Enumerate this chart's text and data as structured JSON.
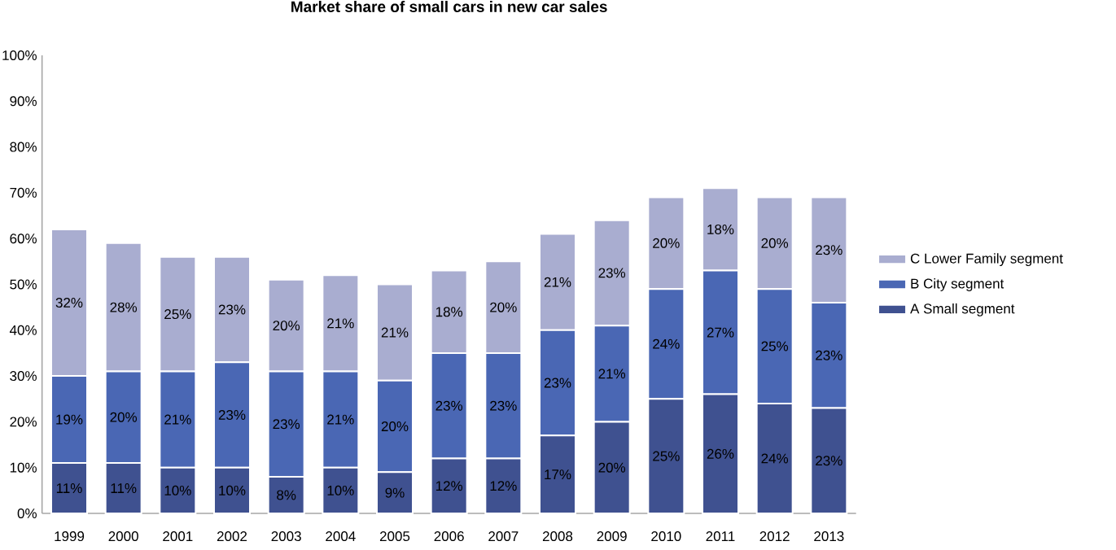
{
  "chart_data": {
    "type": "bar",
    "title": "Market share of small cars in new car sales",
    "categories": [
      "1999",
      "2000",
      "2001",
      "2002",
      "2003",
      "2004",
      "2005",
      "2006",
      "2007",
      "2008",
      "2009",
      "2010",
      "2011",
      "2012",
      "2013"
    ],
    "stacked": true,
    "series": [
      {
        "name": "A Small segment",
        "color": "#3f5190",
        "values": [
          11,
          11,
          10,
          10,
          8,
          10,
          9,
          12,
          12,
          17,
          20,
          25,
          26,
          24,
          23
        ],
        "value_labels": [
          "11%",
          "11%",
          "10%",
          "10%",
          "8%",
          "10%",
          "9%",
          "12%",
          "12%",
          "17%",
          "20%",
          "25%",
          "26%",
          "24%",
          "23%"
        ]
      },
      {
        "name": "B City segment",
        "color": "#4a67b4",
        "values": [
          19,
          20,
          21,
          23,
          23,
          21,
          20,
          23,
          23,
          23,
          21,
          24,
          27,
          25,
          23
        ],
        "value_labels": [
          "19%",
          "20%",
          "21%",
          "23%",
          "23%",
          "21%",
          "20%",
          "23%",
          "23%",
          "23%",
          "21%",
          "24%",
          "27%",
          "25%",
          "23%"
        ]
      },
      {
        "name": "C Lower Family segment",
        "color": "#a9add0",
        "values": [
          32,
          28,
          25,
          23,
          20,
          21,
          21,
          18,
          20,
          21,
          23,
          20,
          18,
          20,
          23
        ],
        "value_labels": [
          "32%",
          "28%",
          "25%",
          "23%",
          "20%",
          "21%",
          "21%",
          "18%",
          "20%",
          "21%",
          "23%",
          "20%",
          "18%",
          "20%",
          "23%"
        ]
      }
    ],
    "ylim": [
      0,
      100
    ],
    "yticks": [
      {
        "value": 0,
        "label": "0%"
      },
      {
        "value": 10,
        "label": "10%"
      },
      {
        "value": 20,
        "label": "20%"
      },
      {
        "value": 30,
        "label": "30%"
      },
      {
        "value": 40,
        "label": "40%"
      },
      {
        "value": 50,
        "label": "50%"
      },
      {
        "value": 60,
        "label": "60%"
      },
      {
        "value": 70,
        "label": "70%"
      },
      {
        "value": 80,
        "label": "80%"
      },
      {
        "value": 90,
        "label": "90%"
      },
      {
        "value": 100,
        "label": "100%"
      }
    ],
    "grid": false,
    "legend": "right"
  }
}
